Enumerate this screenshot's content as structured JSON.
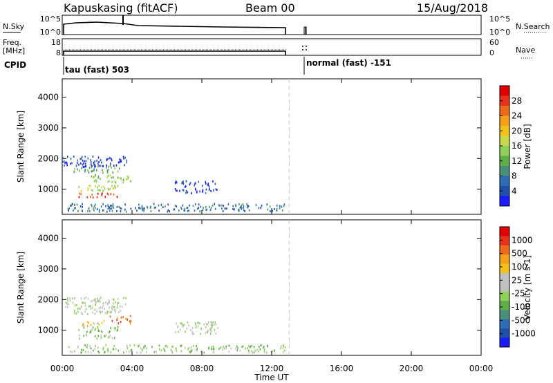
{
  "header": {
    "station": "Kapuskasing (fitACF)",
    "beam": "Beam 00",
    "date": "15/Aug/2018"
  },
  "strips": {
    "nsky_label": "N.Sky",
    "nsearch_label": "N.Search",
    "nsky_ticks": [
      "10^5",
      "10^0"
    ],
    "nsearch_ticks": [
      "10^5",
      "10^0"
    ],
    "freq_label": "Freq.",
    "freq_unit": "[MHz]",
    "freq_ticks": [
      "18",
      "8"
    ],
    "nave_label": "Nave",
    "nave_ticks": [
      "60",
      "0"
    ],
    "cpid_label": "CPID",
    "cpid_entries": [
      "tau (fast) 503",
      "normal (fast) -151"
    ]
  },
  "chart_data": [
    {
      "type": "heatmap",
      "name": "power",
      "ylabel": "Slant Range [km]",
      "yticks": [
        1000,
        2000,
        3000,
        4000
      ],
      "ylim": [
        180,
        4600
      ],
      "xlim": [
        0,
        24
      ],
      "colorbar_label": "Power [dB]",
      "colorbar_ticks": [
        "28",
        "24",
        "20",
        "16",
        "12",
        "8",
        "4"
      ],
      "colors": [
        "#1a1aff",
        "#1f4fa8",
        "#2f6db4",
        "#4a8f7a",
        "#5fae4a",
        "#8ed05a",
        "#c9d94b",
        "#f3c21a",
        "#f5a01a",
        "#ee6a1a",
        "#e8301a",
        "#e00000"
      ],
      "scatter_regions": [
        {
          "t0": 0.0,
          "t1": 3.7,
          "r0": 1750,
          "r1": 2100,
          "level": 1
        },
        {
          "t0": 0.6,
          "t1": 3.3,
          "r0": 1550,
          "r1": 1800,
          "level": 4
        },
        {
          "t0": 1.5,
          "t1": 4.1,
          "r0": 1250,
          "r1": 1500,
          "level": 5
        },
        {
          "t0": 0.9,
          "t1": 3.2,
          "r0": 950,
          "r1": 1150,
          "level": 6
        },
        {
          "t0": 0.9,
          "t1": 3.2,
          "r0": 750,
          "r1": 900,
          "level": 10
        },
        {
          "t0": 6.4,
          "t1": 8.9,
          "r0": 900,
          "r1": 1300,
          "level": 1
        },
        {
          "t0": 0.3,
          "t1": 12.8,
          "r0": 300,
          "r1": 550,
          "level": 2
        }
      ]
    },
    {
      "type": "heatmap",
      "name": "velocity",
      "ylabel": "Slant Range [km]",
      "yticks": [
        1000,
        2000,
        3000,
        4000
      ],
      "ylim": [
        180,
        4600
      ],
      "xlim": [
        0,
        24
      ],
      "xticks": [
        "00:00",
        "04:00",
        "08:00",
        "12:00",
        "16:00",
        "20:00",
        "00:00"
      ],
      "xlabel": "Time UT",
      "colorbar_label": "Velocity [m s-1]",
      "colorbar_ticks": [
        "1000",
        "500",
        "100",
        "25",
        "-25",
        "-100",
        "-500",
        "-1000"
      ],
      "colors": [
        "#1a1aff",
        "#1f4fa8",
        "#2f6db4",
        "#4a8f7a",
        "#5fae4a",
        "#8ed05a",
        "#c0c0c0",
        "#c0c0c0",
        "#f3c21a",
        "#f5a01a",
        "#ee6a1a",
        "#e8301a",
        "#e00000"
      ],
      "scatter_regions": [
        {
          "t0": 0.0,
          "t1": 3.7,
          "r0": 1750,
          "r1": 2100,
          "level": 6
        },
        {
          "t0": 0.6,
          "t1": 3.3,
          "r0": 1550,
          "r1": 1800,
          "level": 6
        },
        {
          "t0": 2.6,
          "t1": 4.1,
          "r0": 1250,
          "r1": 1500,
          "level": 10
        },
        {
          "t0": 1.0,
          "t1": 2.4,
          "r0": 1150,
          "r1": 1350,
          "level": 8
        },
        {
          "t0": 0.9,
          "t1": 3.2,
          "r0": 950,
          "r1": 1150,
          "level": 5
        },
        {
          "t0": 0.9,
          "t1": 3.2,
          "r0": 750,
          "r1": 900,
          "level": 5
        },
        {
          "t0": 6.4,
          "t1": 8.9,
          "r0": 900,
          "r1": 1300,
          "level": 6
        },
        {
          "t0": 0.3,
          "t1": 12.8,
          "r0": 300,
          "r1": 550,
          "level": 5
        }
      ]
    }
  ]
}
